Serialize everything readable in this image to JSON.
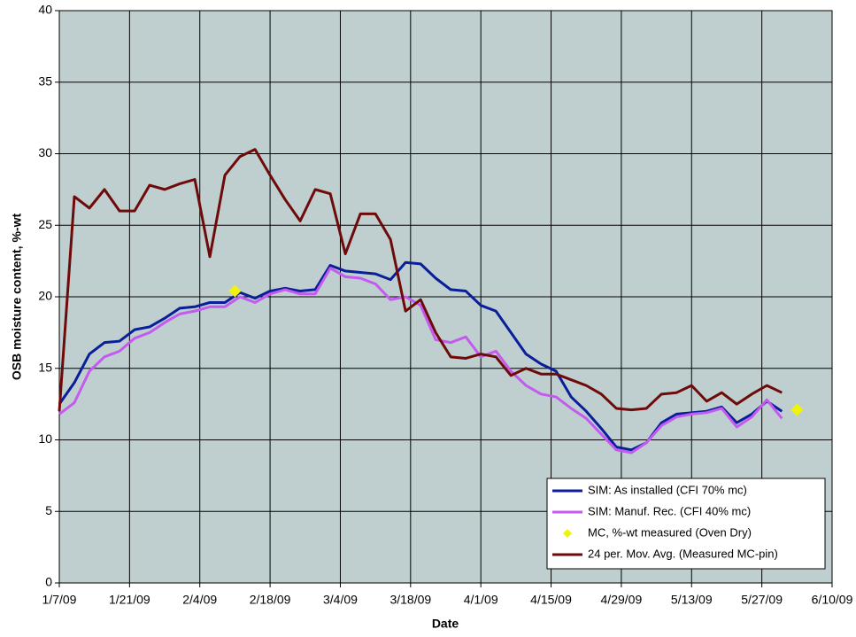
{
  "chart_data": {
    "type": "line",
    "xlabel": "Date",
    "ylabel": "OSB moisture content, %-wt",
    "x": [
      "1/7/09",
      "1/10/09",
      "1/13/09",
      "1/16/09",
      "1/19/09",
      "1/22/09",
      "1/25/09",
      "1/28/09",
      "1/31/09",
      "2/3/09",
      "2/6/09",
      "2/9/09",
      "2/12/09",
      "2/15/09",
      "2/18/09",
      "2/21/09",
      "2/24/09",
      "2/27/09",
      "3/2/09",
      "3/5/09",
      "3/8/09",
      "3/11/09",
      "3/14/09",
      "3/17/09",
      "3/20/09",
      "3/23/09",
      "3/26/09",
      "3/29/09",
      "4/1/09",
      "4/4/09",
      "4/7/09",
      "4/10/09",
      "4/13/09",
      "4/16/09",
      "4/19/09",
      "4/22/09",
      "4/25/09",
      "4/28/09",
      "5/1/09",
      "5/4/09",
      "5/7/09",
      "5/10/09",
      "5/13/09",
      "5/16/09",
      "5/19/09",
      "5/22/09",
      "5/25/09",
      "5/28/09",
      "5/31/09"
    ],
    "series": [
      {
        "name": "SIM: As installed (CFI 70% mc)",
        "color": "#0a1e9a",
        "values": [
          12.5,
          14,
          16,
          16.8,
          16.9,
          17.7,
          17.9,
          18.5,
          19.2,
          19.3,
          19.6,
          19.6,
          20.3,
          19.9,
          20.4,
          20.6,
          20.4,
          20.5,
          22.2,
          21.8,
          21.7,
          21.6,
          21.2,
          22.4,
          22.3,
          21.3,
          20.5,
          20.4,
          19.4,
          19.0,
          17.5,
          16.0,
          15.3,
          14.8,
          13.0,
          12.0,
          10.8,
          9.5,
          9.3,
          9.8,
          11.2,
          11.8,
          11.9,
          12.0,
          12.3,
          11.2,
          11.8,
          12.7,
          12.0
        ]
      },
      {
        "name": "SIM: Manuf. Rec. (CFI 40% mc)",
        "color": "#c45af0",
        "values": [
          11.8,
          12.6,
          14.8,
          15.8,
          16.2,
          17.1,
          17.5,
          18.2,
          18.8,
          19.0,
          19.3,
          19.3,
          20.0,
          19.6,
          20.2,
          20.5,
          20.2,
          20.2,
          22.0,
          21.4,
          21.3,
          20.9,
          19.8,
          20.0,
          19.4,
          17.0,
          16.8,
          17.2,
          15.8,
          16.2,
          14.8,
          13.8,
          13.2,
          13.0,
          12.2,
          11.5,
          10.4,
          9.3,
          9.1,
          9.8,
          11.0,
          11.6,
          11.8,
          11.9,
          12.2,
          10.9,
          11.6,
          12.8,
          11.5
        ]
      },
      {
        "name": "MC, %-wt measured (Oven Dry)",
        "color": "#f2f20a",
        "markers": true,
        "x": [
          "2/11/09",
          "6/3/09"
        ],
        "values": [
          20.4,
          12.1
        ]
      },
      {
        "name": "24 per. Mov. Avg. (Measured MC-pin)",
        "color": "#6e0a0a",
        "values": [
          12,
          27,
          26.2,
          27.5,
          26,
          26.0,
          27.8,
          27.5,
          27.9,
          28.2,
          22.8,
          28.5,
          29.8,
          30.3,
          28.5,
          26.8,
          25.3,
          27.5,
          27.2,
          23.0,
          25.8,
          25.8,
          24.0,
          19.0,
          19.8,
          17.5,
          15.8,
          15.7,
          16.0,
          15.8,
          14.5,
          15.0,
          14.6,
          14.6,
          14.2,
          13.8,
          13.2,
          12.2,
          12.1,
          12.2,
          13.2,
          13.3,
          13.8,
          12.7,
          13.3,
          12.5,
          13.2,
          13.8,
          13.3
        ]
      }
    ],
    "xlim": [
      "1/7/09",
      "6/10/09"
    ],
    "xticks": [
      "1/7/09",
      "1/21/09",
      "2/4/09",
      "2/18/09",
      "3/4/09",
      "3/18/09",
      "4/1/09",
      "4/15/09",
      "4/29/09",
      "5/13/09",
      "5/27/09",
      "6/10/09"
    ],
    "ylim": [
      0,
      40
    ],
    "yticks": [
      0,
      5,
      10,
      15,
      20,
      25,
      30,
      35,
      40
    ],
    "grid": true,
    "legend": "lower right",
    "plot_background": "#bfcfcf"
  }
}
